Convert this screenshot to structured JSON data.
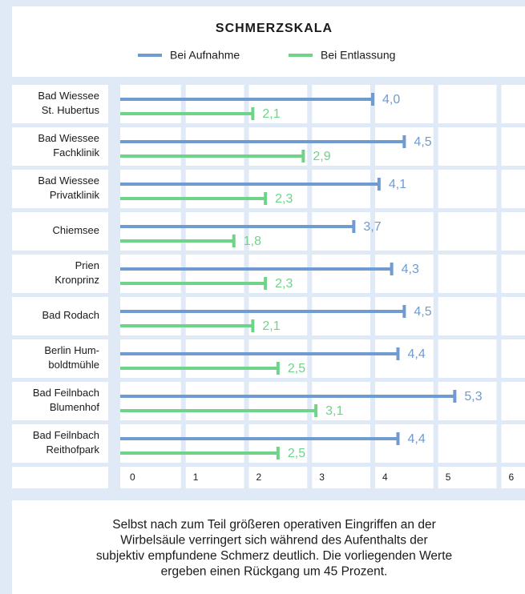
{
  "chart_data": {
    "type": "hbar",
    "title": "SCHMERZSKALA",
    "categories": [
      [
        "Bad Wiessee",
        "St. Hubertus"
      ],
      [
        "Bad Wiessee",
        "Fachklinik"
      ],
      [
        "Bad Wiessee",
        "Privatklinik"
      ],
      [
        "Chiemsee"
      ],
      [
        "Prien",
        "Kronprinz"
      ],
      [
        "Bad Rodach"
      ],
      [
        "Berlin Hum-",
        "boldtmühle"
      ],
      [
        "Bad Feilnbach",
        "Blumenhof"
      ],
      [
        "Bad Feilnbach",
        "Reithofpark"
      ]
    ],
    "series": [
      {
        "name": "Bei Aufnahme",
        "color": "#6f9bd1",
        "values": [
          4.0,
          4.5,
          4.1,
          3.7,
          4.3,
          4.5,
          4.4,
          5.3,
          4.4
        ],
        "value_labels": [
          "4,0",
          "4,5",
          "4,1",
          "3,7",
          "4,3",
          "4,5",
          "4,4",
          "5,3",
          "4,4"
        ]
      },
      {
        "name": "Bei Entlassung",
        "color": "#6fd48a",
        "values": [
          2.1,
          2.9,
          2.3,
          1.8,
          2.3,
          2.1,
          2.5,
          3.1,
          2.5
        ],
        "value_labels": [
          "2,1",
          "2,9",
          "2,3",
          "1,8",
          "2,3",
          "2,1",
          "2,5",
          "3,1",
          "2,5"
        ]
      }
    ],
    "xlim": [
      0,
      6
    ],
    "xticks": [
      0,
      1,
      2,
      3,
      4,
      5,
      6
    ],
    "grid": true,
    "caption": [
      "Selbst nach zum Teil größeren operativen Eingriffen an der",
      "Wirbelsäule verringert sich während des Aufenthalts der",
      "subjektiv empfundene Schmerz deutlich. Die vorliegenden Werte",
      "ergeben einen Rückgang um 45 Prozent."
    ]
  }
}
